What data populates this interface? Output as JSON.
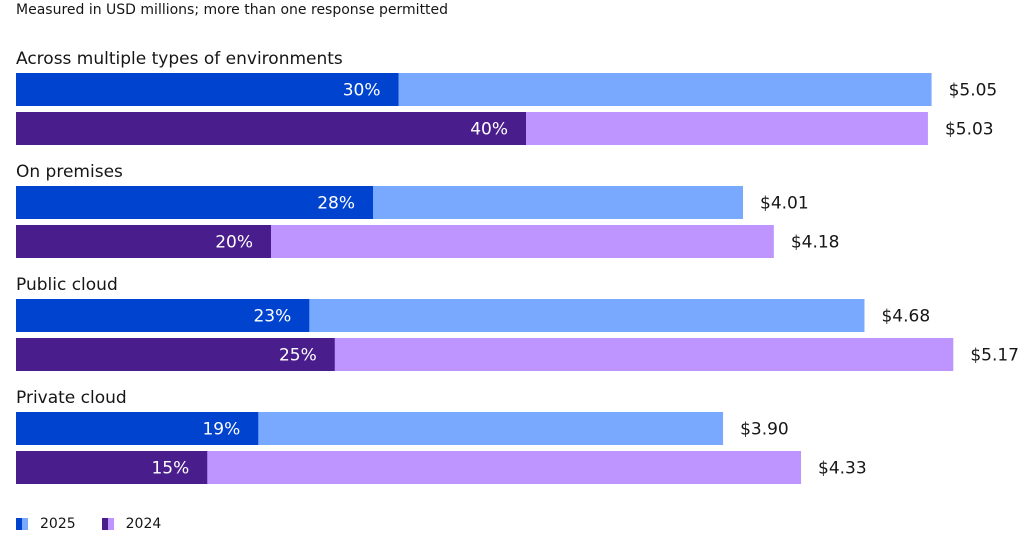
{
  "subtitle": "Measured in USD millions; more than one response permitted",
  "colors": {
    "2025_dark": "#0043ce",
    "2025_light": "#78a9ff",
    "2024_dark": "#491d8b",
    "2024_light": "#be95ff"
  },
  "chart_data": {
    "type": "bar",
    "orientation": "horizontal",
    "title": "",
    "subtitle": "Measured in USD millions; more than one response permitted",
    "xlabel": "",
    "ylabel": "",
    "grid": false,
    "legend_position": "bottom-left",
    "categories": [
      "Across multiple types of environments",
      "On premises",
      "Public cloud",
      "Private cloud"
    ],
    "series": [
      {
        "name": "2025",
        "values": [
          5.05,
          4.01,
          4.68,
          3.9
        ],
        "value_labels": [
          "$5.05",
          "$4.01",
          "$4.68",
          "$3.90"
        ],
        "percent": [
          30,
          28,
          23,
          19
        ],
        "percent_labels": [
          "30%",
          "28%",
          "23%",
          "19%"
        ]
      },
      {
        "name": "2024",
        "values": [
          5.03,
          4.18,
          5.17,
          4.33
        ],
        "value_labels": [
          "$5.03",
          "$4.18",
          "$5.17",
          "$4.33"
        ],
        "percent": [
          40,
          20,
          25,
          15
        ],
        "percent_labels": [
          "40%",
          "20%",
          "25%",
          "15%"
        ]
      }
    ]
  },
  "legend": [
    {
      "label": "2025"
    },
    {
      "label": "2024"
    }
  ]
}
